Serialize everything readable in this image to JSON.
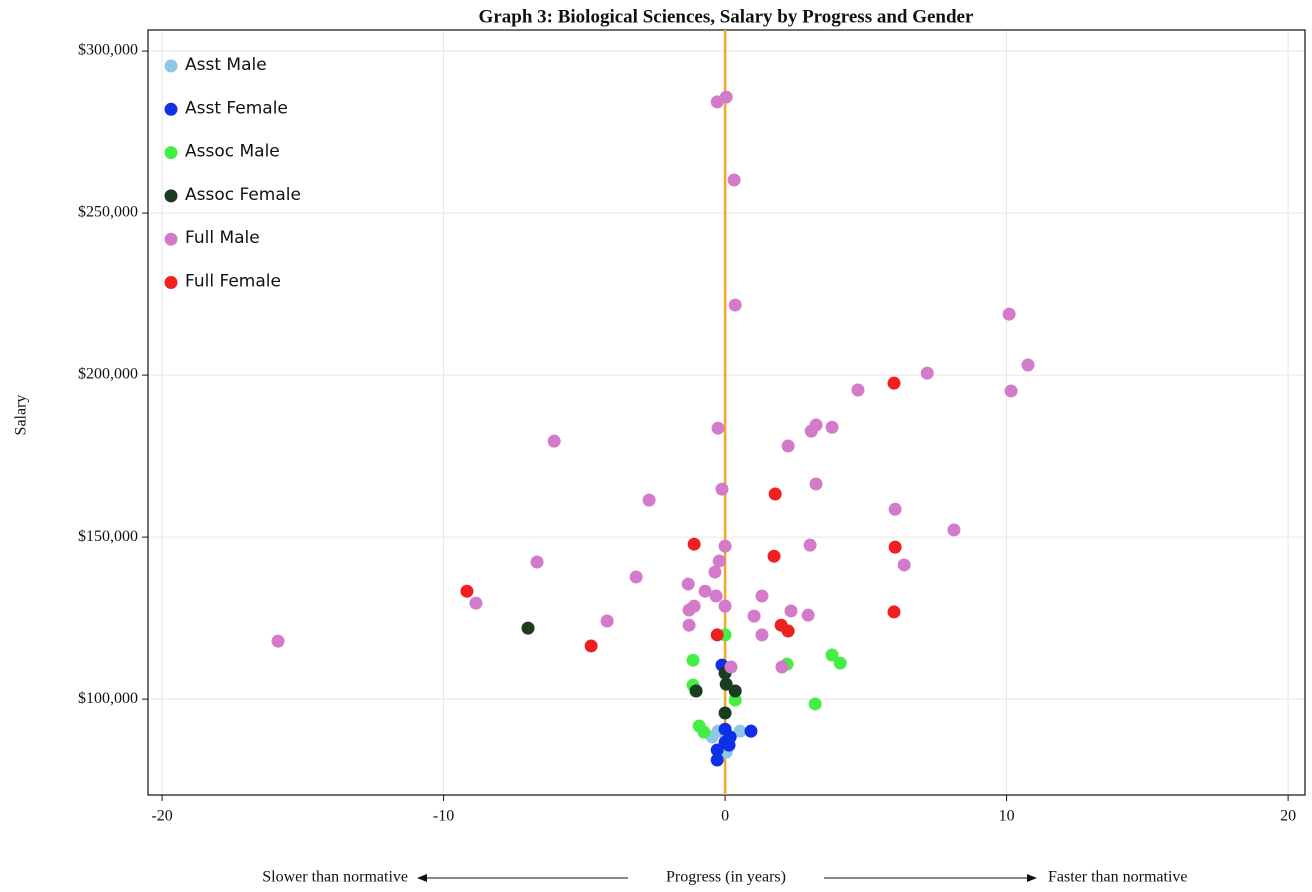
{
  "chart_data": {
    "type": "scatter",
    "title": "Graph 3: Biological Sciences, Salary by Progress and Gender",
    "x_label": "Progress (in years)",
    "y_label": "Salary",
    "x_left_note": "Slower than normative",
    "x_right_note": "Faster than normative",
    "xlim": [
      -20.5,
      20.6
    ],
    "xticks": [
      -20,
      -10,
      0,
      10,
      20
    ],
    "ylim": [
      70400,
      306500
    ],
    "yticks": [
      {
        "value": 100000,
        "label": "$100,000"
      },
      {
        "value": 150000,
        "label": "$150,000"
      },
      {
        "value": 200000,
        "label": "$200,000"
      },
      {
        "value": 250000,
        "label": "$250,000"
      },
      {
        "value": 300000,
        "label": "$300,000"
      }
    ],
    "grid": true,
    "legend": "top-left",
    "reference_line": {
      "x": 0,
      "color": "#f5a623"
    },
    "series": [
      {
        "name": "Asst Male",
        "color": "#8ec8e6",
        "x": [
          -0.25,
          0.53,
          0.04,
          -0.46
        ],
        "y": [
          90100,
          90100,
          83600,
          88300
        ]
      },
      {
        "name": "Asst Female",
        "color": "#1030e8",
        "x": [
          -0.11,
          0,
          0.92,
          0.18,
          0,
          -0.28,
          0.14,
          -0.28
        ],
        "y": [
          110500,
          90700,
          90100,
          88300,
          86700,
          84300,
          85800,
          81200
        ]
      },
      {
        "name": "Assoc Male",
        "color": "#44ee44",
        "x": [
          0,
          -1.14,
          3.8,
          4.09,
          2.2,
          -1.14,
          0.36,
          3.2,
          -0.92,
          -0.75
        ],
        "y": [
          119800,
          112000,
          113600,
          111100,
          110800,
          104300,
          99700,
          98500,
          91700,
          89800
        ]
      },
      {
        "name": "Assoc Female",
        "color": "#1b3d1f",
        "x": [
          -7.0,
          0,
          0.04,
          0.36,
          -1.03,
          0
        ],
        "y": [
          121900,
          108000,
          104600,
          102500,
          102500,
          95700
        ]
      },
      {
        "name": "Full Male",
        "color": "#d37acb",
        "x": [
          -0.28,
          0.04,
          0.32,
          0.36,
          10.09,
          10.76,
          7.18,
          10.16,
          4.72,
          3.23,
          3.06,
          3.8,
          -0.25,
          -6.07,
          2.24,
          3.23,
          -0.11,
          -2.7,
          6.04,
          8.13,
          3.02,
          0,
          -0.21,
          -6.68,
          6.36,
          -0.36,
          -3.16,
          -1.31,
          -0.71,
          1.31,
          -0.32,
          -8.85,
          -1.1,
          0,
          -1.28,
          2.34,
          2.95,
          1.03,
          -4.19,
          -1.28,
          1.31,
          -15.88,
          0.21,
          2.02
        ],
        "y": [
          284300,
          285800,
          260200,
          221600,
          218800,
          203100,
          200600,
          195100,
          195400,
          184600,
          182700,
          183900,
          183600,
          179600,
          178100,
          166400,
          164800,
          161400,
          158600,
          152200,
          147500,
          147200,
          142600,
          142300,
          141400,
          139200,
          137700,
          135500,
          133300,
          131800,
          131800,
          129600,
          128700,
          128700,
          127500,
          127200,
          125900,
          125600,
          124100,
          122800,
          119800,
          117900,
          109900,
          109900
        ]
      },
      {
        "name": "Full Female",
        "color": "#f02020",
        "x": [
          6.0,
          1.78,
          -1.1,
          6.04,
          1.74,
          -9.17,
          6.0,
          1.99,
          2.24,
          -0.28,
          -4.76
        ],
        "y": [
          197500,
          163300,
          147800,
          146900,
          144100,
          133300,
          126900,
          122800,
          121000,
          119800,
          116400
        ]
      }
    ]
  }
}
